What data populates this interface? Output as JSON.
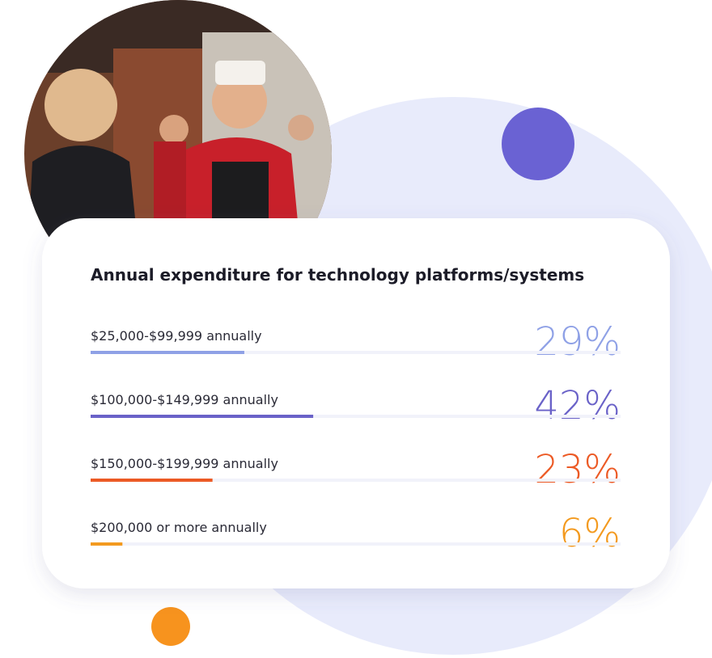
{
  "chart_data": {
    "type": "hbar",
    "title": "Annual expenditure for technology platforms/systems",
    "categories": [
      "$25,000-$99,999 annually",
      "$100,000-$149,999 annually",
      "$150,000-$199,999 annually",
      "$200,000 or more annually"
    ],
    "values": [
      29,
      42,
      23,
      6
    ],
    "value_labels": [
      "29%",
      "42%",
      "23%",
      "6%"
    ],
    "colors": [
      "#8fa1e6",
      "#6a62c8",
      "#ec5a25",
      "#f39a1f"
    ],
    "xlim": [
      0,
      100
    ]
  }
}
